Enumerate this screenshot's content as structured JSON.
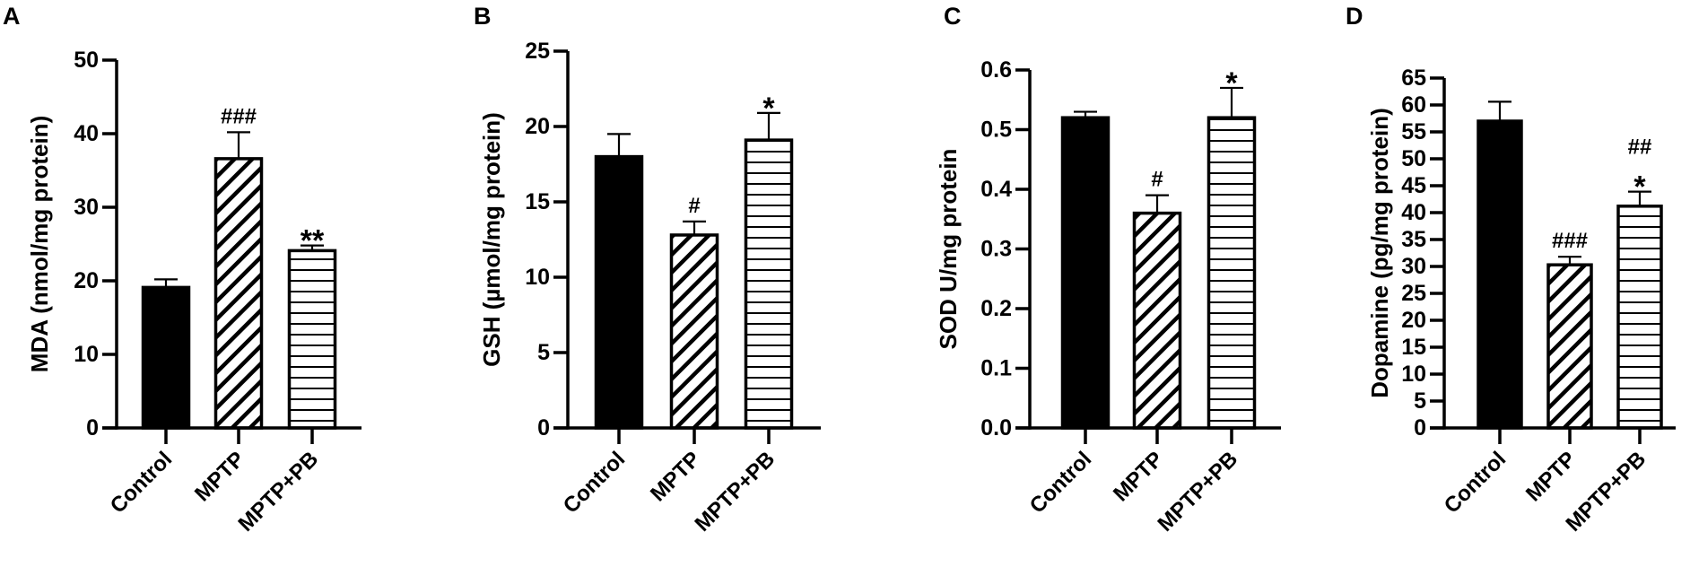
{
  "chart_data": [
    {
      "type": "bar",
      "panel": "A",
      "title": "",
      "xlabel": "",
      "ylabel": "MDA (nmol/mg protein)",
      "ylim": [
        0,
        50
      ],
      "ytick_labels": [
        "0",
        "10",
        "20",
        "30",
        "40",
        "50"
      ],
      "ytick_values": [
        0,
        10,
        20,
        30,
        40,
        50
      ],
      "categories": [
        "Control",
        "MPTP",
        "MPTP+PB"
      ],
      "values": [
        19.1,
        36.6,
        24.1
      ],
      "errors": [
        1.1,
        3.6,
        0.7
      ],
      "patterns": [
        "solid",
        "diagonal",
        "horizontal"
      ],
      "annotations": [
        [],
        [
          "###"
        ],
        [
          "**"
        ]
      ],
      "grid": false
    },
    {
      "type": "bar",
      "panel": "B",
      "title": "",
      "xlabel": "",
      "ylabel": "GSH (µmol/mg protein)",
      "ylim": [
        0,
        25
      ],
      "ytick_labels": [
        "0",
        "5",
        "10",
        "15",
        "20",
        "25"
      ],
      "ytick_values": [
        0,
        5,
        10,
        15,
        20,
        25
      ],
      "categories": [
        "Control",
        "MPTP",
        "MPTP+PB"
      ],
      "values": [
        18.0,
        12.8,
        19.1
      ],
      "errors": [
        1.5,
        0.9,
        1.8
      ],
      "patterns": [
        "solid",
        "diagonal",
        "horizontal"
      ],
      "annotations": [
        [],
        [
          "#"
        ],
        [
          "*"
        ]
      ],
      "grid": false
    },
    {
      "type": "bar",
      "panel": "C",
      "title": "",
      "xlabel": "",
      "ylabel": "SOD U/mg protein",
      "ylim": [
        0,
        0.6
      ],
      "ytick_labels": [
        "0.0",
        "0.1",
        "0.2",
        "0.3",
        "0.4",
        "0.5",
        "0.6"
      ],
      "ytick_values": [
        0,
        0.1,
        0.2,
        0.3,
        0.4,
        0.5,
        0.6
      ],
      "categories": [
        "Control",
        "MPTP",
        "MPTP+PB"
      ],
      "values": [
        0.52,
        0.36,
        0.52
      ],
      "errors": [
        0.01,
        0.03,
        0.05
      ],
      "patterns": [
        "solid",
        "diagonal",
        "horizontal"
      ],
      "annotations": [
        [],
        [
          "#"
        ],
        [
          "*"
        ]
      ],
      "grid": false
    },
    {
      "type": "bar",
      "panel": "D",
      "title": "",
      "xlabel": "",
      "ylabel": "Dopamine (pg/mg protein)",
      "ylim": [
        0,
        65
      ],
      "ytick_labels": [
        "0",
        "5",
        "10",
        "15",
        "20",
        "25",
        "30",
        "35",
        "40",
        "45",
        "50",
        "55",
        "60",
        "65"
      ],
      "ytick_values": [
        0,
        5,
        10,
        15,
        20,
        25,
        30,
        35,
        40,
        45,
        50,
        55,
        60,
        65
      ],
      "categories": [
        "Control",
        "MPTP",
        "MPTP+PB"
      ],
      "values": [
        57.0,
        30.3,
        41.2
      ],
      "errors": [
        3.6,
        1.5,
        2.7
      ],
      "patterns": [
        "solid",
        "diagonal",
        "horizontal"
      ],
      "annotations": [
        [],
        [
          "###"
        ],
        [
          "*",
          "##"
        ]
      ],
      "grid": false
    }
  ],
  "colors": {
    "ink": "#000000",
    "background": "#ffffff"
  }
}
